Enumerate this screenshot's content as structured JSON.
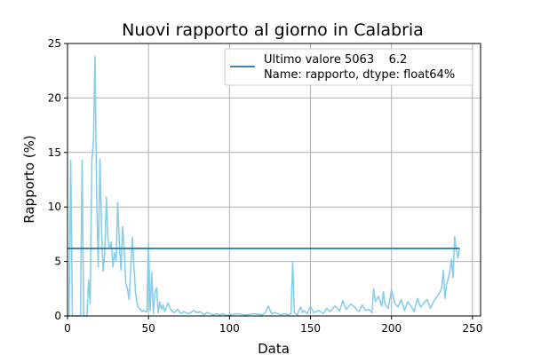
{
  "chart_data": {
    "type": "line",
    "title": "Nuovi rapporto al giorno in Calabria",
    "xlabel": "Data",
    "ylabel": "Rapporto (%)",
    "xlim": [
      0,
      255
    ],
    "ylim": [
      0,
      25
    ],
    "xticks": [
      0,
      50,
      100,
      150,
      200,
      250
    ],
    "yticks": [
      0,
      5,
      10,
      15,
      20,
      25
    ],
    "grid": true,
    "legend_position": "top-right",
    "legend": [
      "Ultimo valore 5063    6.2",
      "Name: rapporto, dtype: float64%"
    ],
    "colors": {
      "series": "#87ceeb",
      "reference": "#1f77b4"
    },
    "series": [
      {
        "x": [
          0,
          1,
          2,
          3,
          4,
          5,
          6,
          7,
          8,
          9,
          10,
          11,
          12,
          13,
          14,
          15,
          16,
          17,
          18,
          19,
          20,
          21,
          22,
          23,
          24,
          25,
          26,
          27,
          28,
          29,
          30,
          31,
          32,
          33,
          34,
          35,
          36,
          37,
          38,
          39,
          40,
          41,
          42,
          43,
          44,
          45,
          46,
          47,
          48,
          49,
          50,
          51,
          52,
          53,
          54,
          55,
          56,
          57,
          58,
          59,
          60,
          62,
          64,
          66,
          68,
          70,
          72,
          74,
          76,
          78,
          80,
          82,
          84,
          86,
          88,
          90,
          92,
          94,
          96,
          98,
          100,
          105,
          110,
          115,
          120,
          122,
          124,
          126,
          128,
          130,
          132,
          134,
          136,
          138,
          139,
          140,
          141,
          142,
          143,
          144,
          145,
          146,
          148,
          150,
          152,
          155,
          158,
          160,
          162,
          165,
          168,
          170,
          172,
          175,
          178,
          180,
          182,
          184,
          186,
          188,
          189,
          190,
          192,
          194,
          195,
          196,
          198,
          200,
          202,
          204,
          206,
          208,
          210,
          212,
          214,
          216,
          218,
          220,
          222,
          224,
          226,
          228,
          230,
          231,
          232,
          233,
          234,
          235,
          236,
          237,
          238,
          239,
          240,
          241,
          242
        ],
        "y": [
          0,
          0,
          14.3,
          0,
          0,
          0,
          0,
          0,
          0,
          14.3,
          0,
          0,
          0,
          3.3,
          1.1,
          14.3,
          16,
          23.8,
          11,
          4.5,
          14.4,
          8,
          4.1,
          5.8,
          10.9,
          7,
          6.2,
          6.8,
          4.5,
          5.8,
          5.1,
          10.4,
          6.5,
          4.2,
          8.2,
          6.1,
          3,
          2.5,
          1.5,
          4.2,
          7.2,
          4.5,
          2.1,
          1.1,
          0.7,
          0.6,
          0.4,
          0.5,
          0.4,
          0.4,
          6.7,
          0.5,
          4,
          0.2,
          2.2,
          2.6,
          0.3,
          1.3,
          0.6,
          1,
          0.4,
          1.2,
          0.5,
          0.3,
          0.6,
          0.2,
          0.4,
          0.2,
          0.3,
          0.5,
          0.3,
          0.4,
          0.1,
          0.3,
          0.2,
          0.1,
          0.2,
          0.1,
          0.2,
          0.05,
          0.1,
          0.2,
          0.1,
          0.2,
          0.1,
          0.3,
          0.9,
          0.2,
          0.3,
          0.2,
          0.1,
          0.2,
          0.1,
          0.2,
          5,
          0.3,
          0.2,
          0.1,
          0.6,
          0.8,
          0.3,
          0.5,
          0.2,
          0.9,
          0.3,
          0.5,
          0.2,
          0.7,
          0.4,
          0.9,
          0.5,
          1.4,
          0.6,
          1.1,
          0.7,
          0.4,
          1,
          0.5,
          0.6,
          0.3,
          2.5,
          1.3,
          1.8,
          0.9,
          2.2,
          1.1,
          0.7,
          2.4,
          1.2,
          0.8,
          1.5,
          0.5,
          1.3,
          0.9,
          0.4,
          1.6,
          0.8,
          1.2,
          1.5,
          0.7,
          1.3,
          1.8,
          2.2,
          2.6,
          4.2,
          1.6,
          2.9,
          3.4,
          4.1,
          5.2,
          3.5,
          7.3,
          6.1,
          5.3,
          6.2
        ]
      },
      {
        "x": [
          0,
          242
        ],
        "y": [
          6.2,
          6.2
        ]
      }
    ]
  }
}
